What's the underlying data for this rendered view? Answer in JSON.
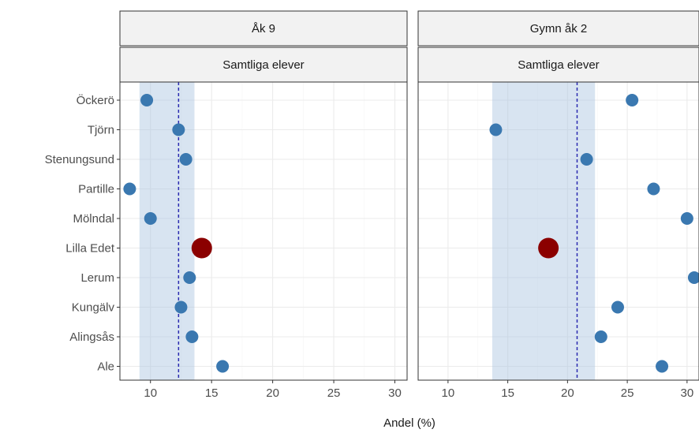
{
  "chart_data": {
    "type": "scatter",
    "xlabel": "Andel (%)",
    "ylabel": "",
    "categories": [
      "Ale",
      "Alingsås",
      "Kungälv",
      "Lerum",
      "Lilla Edet",
      "Mölndal",
      "Partille",
      "Stenungsund",
      "Tjörn",
      "Öckerö"
    ],
    "highlight": "Lilla Edet",
    "xlim": [
      7.5,
      31
    ],
    "x_ticks": [
      10,
      15,
      20,
      25,
      30
    ],
    "grid": true,
    "colors": {
      "point": "#3a78b0",
      "highlight": "#8b0000",
      "band": "#a8c4e0",
      "mean_line": "#2b2bb0"
    },
    "panels": [
      {
        "title": "Åk 9",
        "subtitle": "Samtliga elever",
        "mean": 12.3,
        "band": [
          9.1,
          13.6
        ],
        "values": [
          15.9,
          13.4,
          12.5,
          13.2,
          14.2,
          10.0,
          8.3,
          12.9,
          12.3,
          9.7
        ]
      },
      {
        "title": "Gymn åk 2",
        "subtitle": "Samtliga elever",
        "mean": 20.8,
        "band": [
          13.7,
          22.3
        ],
        "values": [
          27.9,
          22.8,
          24.2,
          30.6,
          18.4,
          30.0,
          27.2,
          21.6,
          14.0,
          25.4
        ]
      }
    ]
  }
}
